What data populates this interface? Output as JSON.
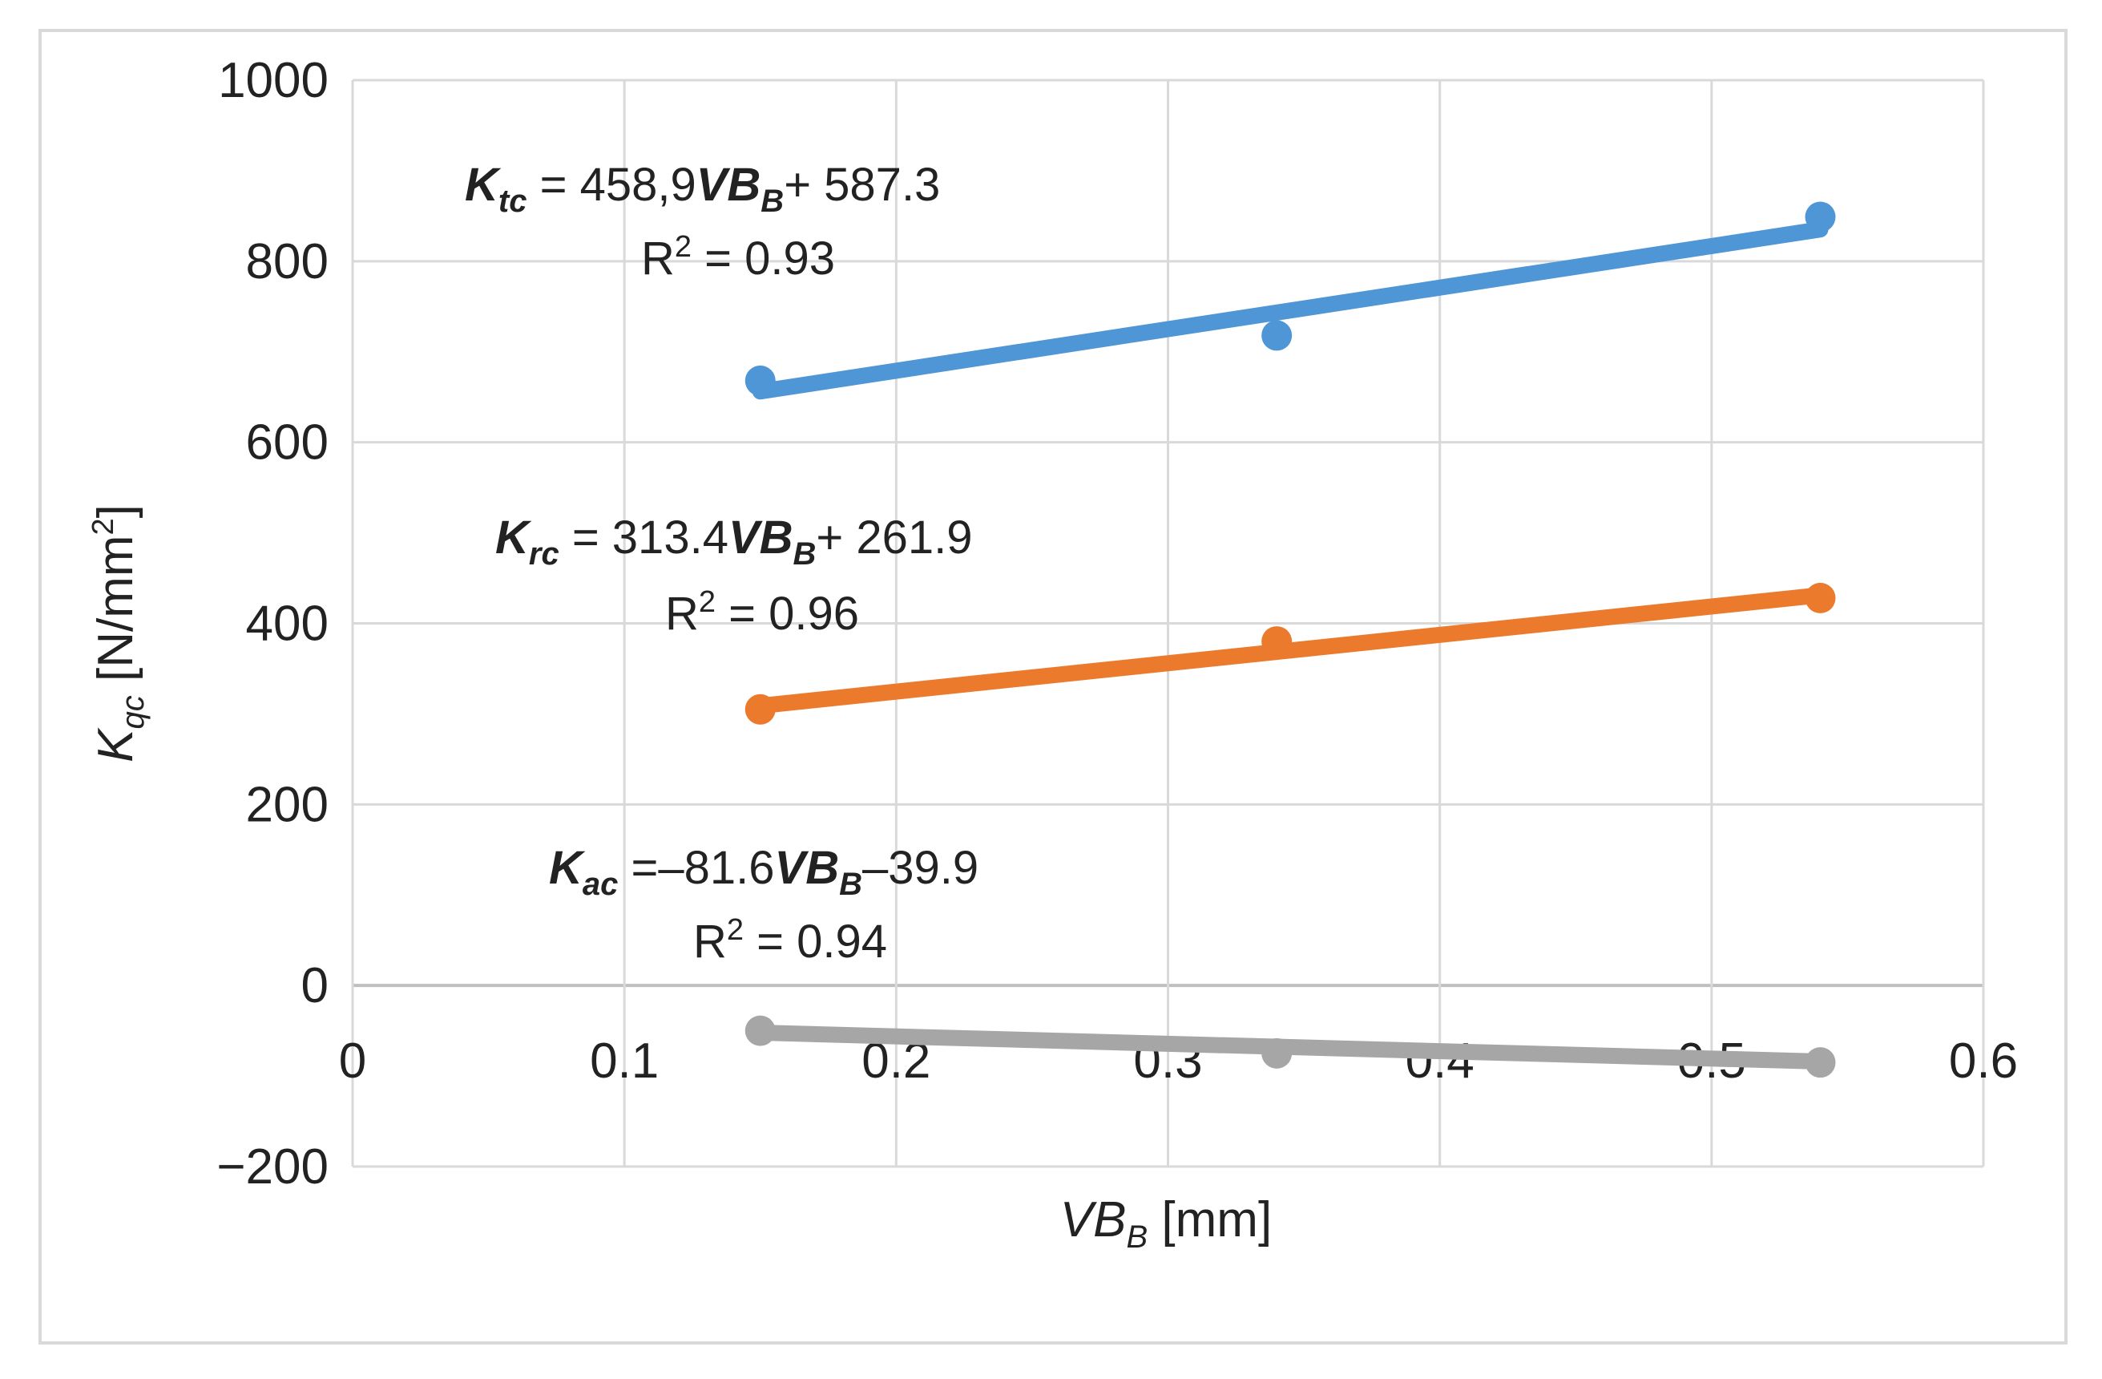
{
  "chart_data": {
    "type": "scatter",
    "x": [
      0.15,
      0.34,
      0.54
    ],
    "series": [
      {
        "key": "Ktc",
        "color": "#4f96d6",
        "values": [
          668,
          718,
          849
        ],
        "trend": {
          "slope": 458.9,
          "intercept": 587.3
        }
      },
      {
        "key": "Krc",
        "color": "#ec7a2c",
        "values": [
          305,
          380,
          428
        ],
        "trend": {
          "slope": 313.4,
          "intercept": 261.9
        }
      },
      {
        "key": "Kac",
        "color": "#a6a6a6",
        "values": [
          -50,
          -75,
          -85
        ],
        "trend": {
          "slope": -81.6,
          "intercept": -39.9
        }
      }
    ],
    "xlim": [
      0,
      0.6
    ],
    "ylim": [
      -200,
      1000
    ],
    "x_ticks": [
      "0",
      "0.1",
      "0.2",
      "0.3",
      "0.4",
      "0.5",
      "0.6"
    ],
    "y_ticks": [
      "1000",
      "800",
      "600",
      "400",
      "200",
      "0",
      "−200"
    ],
    "xlabel": {
      "main": "VB",
      "sub": "B",
      "unit": " [mm]"
    },
    "ylabel": {
      "main": "K",
      "sub": "qc",
      "unit": " [N/mm",
      "sup": "2",
      "close": "]"
    },
    "grid": true,
    "annotations": [
      {
        "sym": "K",
        "sub": "tc",
        "rhs_a": " = 458,9",
        "var": "VB",
        "var_sub": "B",
        "rhs_b": "+ 587.3",
        "r2_label": "R",
        "r2_sup": "2",
        "r2_value": " = 0.93"
      },
      {
        "sym": "K",
        "sub": "rc",
        "rhs_a": " = 313.4",
        "var": "VB",
        "var_sub": "B",
        "rhs_b": "+ 261.9",
        "r2_label": "R",
        "r2_sup": "2",
        "r2_value": " = 0.96"
      },
      {
        "sym": "K",
        "sub": "ac",
        "rhs_a": " =–81.6",
        "var": "VB",
        "var_sub": "B",
        "rhs_b": "–39.9",
        "r2_label": "R",
        "r2_sup": "2",
        "r2_value": " = 0.94"
      }
    ]
  }
}
